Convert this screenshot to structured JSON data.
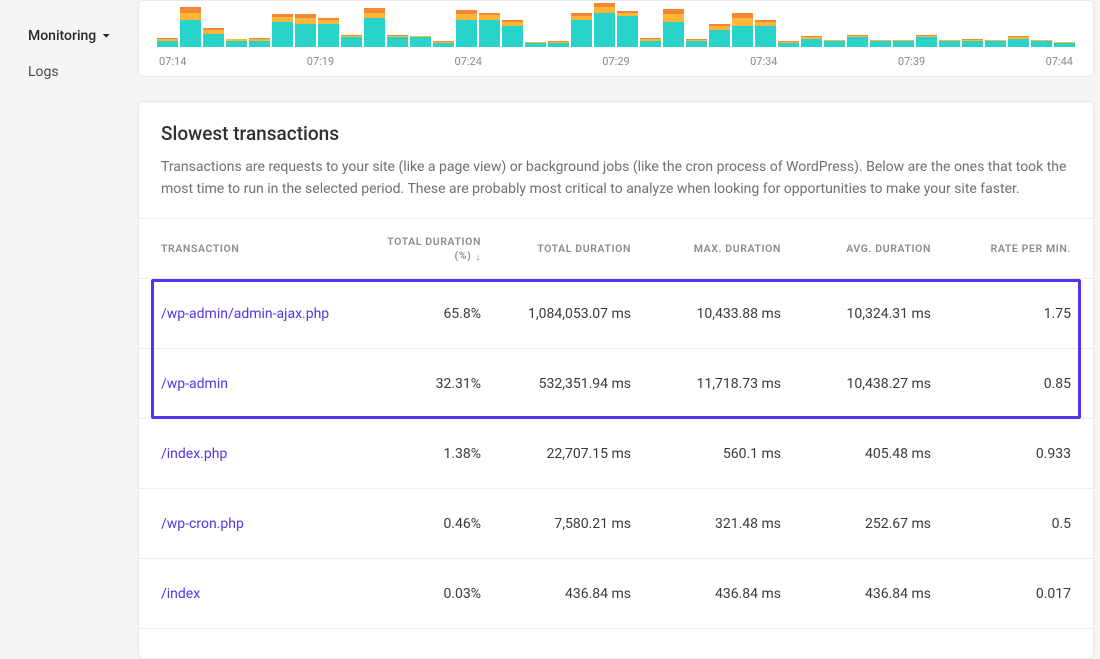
{
  "sidebar": {
    "items": [
      {
        "label": "Monitoring",
        "active": true
      },
      {
        "label": "Logs",
        "active": false
      }
    ]
  },
  "chart": {
    "colors": {
      "base": "#28d3ca",
      "warn": "#fdb638",
      "hot": "#f58634",
      "bg": "#ffffff"
    },
    "max": 48,
    "bars": [
      [
        6,
        2,
        1
      ],
      [
        28,
        8,
        6
      ],
      [
        14,
        4,
        2
      ],
      [
        6,
        2,
        0
      ],
      [
        6,
        2,
        1
      ],
      [
        26,
        5,
        3
      ],
      [
        24,
        6,
        4
      ],
      [
        24,
        4,
        2
      ],
      [
        10,
        2,
        1
      ],
      [
        30,
        6,
        5
      ],
      [
        10,
        2,
        1
      ],
      [
        10,
        2,
        0
      ],
      [
        4,
        1,
        1
      ],
      [
        28,
        6,
        5
      ],
      [
        28,
        5,
        3
      ],
      [
        22,
        4,
        2
      ],
      [
        4,
        1,
        0
      ],
      [
        4,
        1,
        1
      ],
      [
        28,
        4,
        3
      ],
      [
        36,
        6,
        4
      ],
      [
        32,
        4,
        2
      ],
      [
        6,
        2,
        1
      ],
      [
        26,
        8,
        6
      ],
      [
        6,
        1,
        1
      ],
      [
        18,
        4,
        2
      ],
      [
        22,
        8,
        6
      ],
      [
        22,
        4,
        2
      ],
      [
        4,
        1,
        1
      ],
      [
        8,
        2,
        1
      ],
      [
        6,
        1,
        0
      ],
      [
        10,
        2,
        1
      ],
      [
        6,
        1,
        0
      ],
      [
        6,
        1,
        0
      ],
      [
        10,
        2,
        1
      ],
      [
        6,
        1,
        0
      ],
      [
        6,
        1,
        1
      ],
      [
        6,
        1,
        0
      ],
      [
        8,
        2,
        1
      ],
      [
        6,
        1,
        0
      ],
      [
        4,
        1,
        0
      ]
    ],
    "xticks": [
      "07:14",
      "07:19",
      "07:24",
      "07:29",
      "07:34",
      "07:39",
      "07:44"
    ]
  },
  "panel": {
    "title": "Slowest transactions",
    "desc": "Transactions are requests to your site (like a page view) or background jobs (like the cron process of WordPress). Below are the ones that took the most time to run in the selected period. These are probably most critical to analyze when looking for opportunities to make your site faster."
  },
  "table": {
    "columns": [
      "TRANSACTION",
      "TOTAL DURATION (%)",
      "TOTAL DURATION",
      "MAX. DURATION",
      "AVG. DURATION",
      "RATE PER MIN."
    ],
    "highlight_rows": [
      0,
      1
    ],
    "highlight_color": "#5333ed",
    "rows": [
      {
        "t": "/wp-admin/admin-ajax.php",
        "pct": "65.8%",
        "total": "1,084,053.07 ms",
        "max": "10,433.88 ms",
        "avg": "10,324.31 ms",
        "rate": "1.75"
      },
      {
        "t": "/wp-admin",
        "pct": "32.31%",
        "total": "532,351.94 ms",
        "max": "11,718.73 ms",
        "avg": "10,438.27 ms",
        "rate": "0.85"
      },
      {
        "t": "/index.php",
        "pct": "1.38%",
        "total": "22,707.15 ms",
        "max": "560.1 ms",
        "avg": "405.48 ms",
        "rate": "0.933"
      },
      {
        "t": "/wp-cron.php",
        "pct": "0.46%",
        "total": "7,580.21 ms",
        "max": "321.48 ms",
        "avg": "252.67 ms",
        "rate": "0.5"
      },
      {
        "t": "/index",
        "pct": "0.03%",
        "total": "436.84 ms",
        "max": "436.84 ms",
        "avg": "436.84 ms",
        "rate": "0.017"
      }
    ]
  }
}
